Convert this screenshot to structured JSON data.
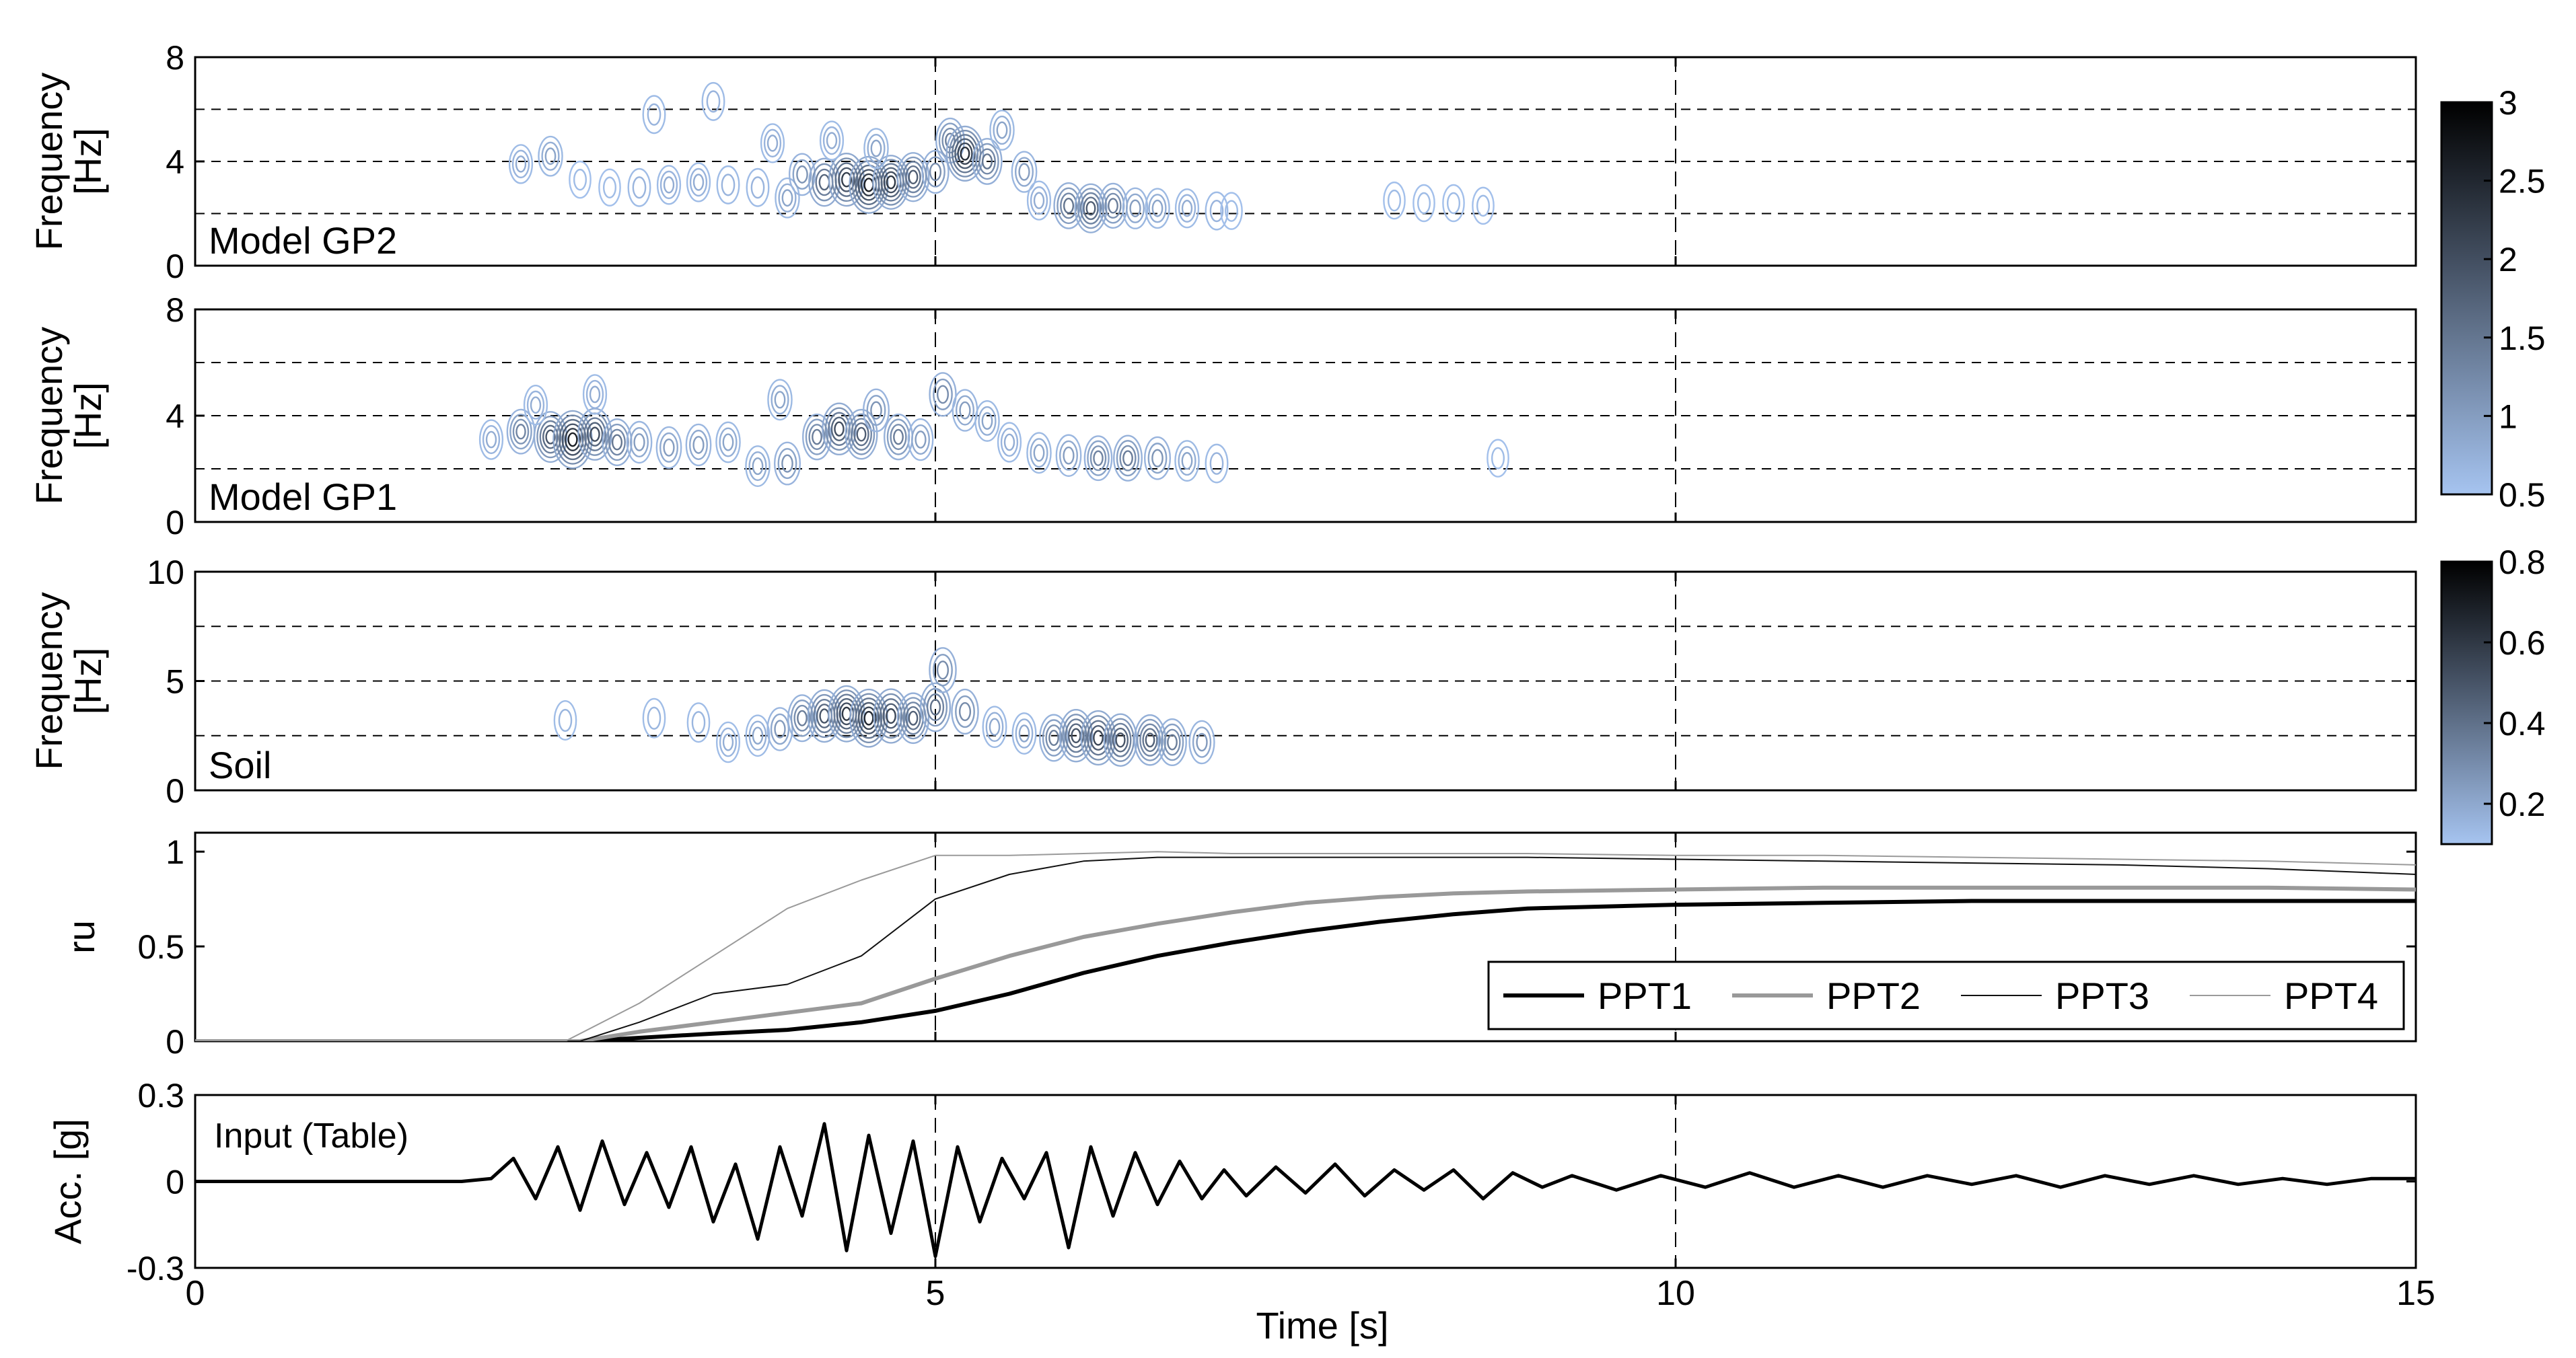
{
  "chart_data": {
    "type": "line",
    "xlabel": "Time [s]",
    "xlim": [
      0,
      15
    ],
    "xticks": [
      "0",
      "5",
      "10",
      "15"
    ],
    "panels": [
      {
        "id": "gp2",
        "type": "heatmap",
        "ylabel_line1": "Frequency",
        "ylabel_line2": "[Hz]",
        "label": "Model GP2",
        "ylim": [
          0,
          8
        ],
        "yticks": [
          "0",
          "4",
          "8"
        ],
        "dashed_y": [
          2,
          4,
          6
        ],
        "colorbar": "cb1",
        "blobs": [
          {
            "t": 2.2,
            "f": 3.9,
            "a": 0.8
          },
          {
            "t": 2.4,
            "f": 4.2,
            "a": 0.9
          },
          {
            "t": 2.6,
            "f": 3.3,
            "a": 0.6
          },
          {
            "t": 2.8,
            "f": 3.0,
            "a": 0.6
          },
          {
            "t": 3.0,
            "f": 3.0,
            "a": 0.7
          },
          {
            "t": 3.2,
            "f": 3.1,
            "a": 0.8
          },
          {
            "t": 3.1,
            "f": 5.8,
            "a": 0.7
          },
          {
            "t": 3.4,
            "f": 3.2,
            "a": 0.8
          },
          {
            "t": 3.5,
            "f": 6.3,
            "a": 0.7
          },
          {
            "t": 3.6,
            "f": 3.1,
            "a": 0.7
          },
          {
            "t": 3.8,
            "f": 3.0,
            "a": 0.7
          },
          {
            "t": 3.9,
            "f": 4.7,
            "a": 0.8
          },
          {
            "t": 4.0,
            "f": 2.6,
            "a": 0.9
          },
          {
            "t": 4.1,
            "f": 3.5,
            "a": 1.1
          },
          {
            "t": 4.25,
            "f": 3.2,
            "a": 1.7
          },
          {
            "t": 4.4,
            "f": 3.3,
            "a": 2.2
          },
          {
            "t": 4.55,
            "f": 3.1,
            "a": 2.6
          },
          {
            "t": 4.7,
            "f": 3.2,
            "a": 2.3
          },
          {
            "t": 4.85,
            "f": 3.4,
            "a": 1.8
          },
          {
            "t": 4.3,
            "f": 4.8,
            "a": 0.8
          },
          {
            "t": 4.6,
            "f": 4.5,
            "a": 0.9
          },
          {
            "t": 5.0,
            "f": 3.6,
            "a": 1.2
          },
          {
            "t": 5.1,
            "f": 4.8,
            "a": 1.4
          },
          {
            "t": 5.2,
            "f": 4.3,
            "a": 2.4
          },
          {
            "t": 5.35,
            "f": 4.0,
            "a": 1.5
          },
          {
            "t": 5.45,
            "f": 5.2,
            "a": 0.9
          },
          {
            "t": 5.6,
            "f": 3.6,
            "a": 1.0
          },
          {
            "t": 5.7,
            "f": 2.5,
            "a": 0.8
          },
          {
            "t": 5.9,
            "f": 2.3,
            "a": 1.5
          },
          {
            "t": 6.05,
            "f": 2.2,
            "a": 1.8
          },
          {
            "t": 6.2,
            "f": 2.3,
            "a": 1.4
          },
          {
            "t": 6.35,
            "f": 2.2,
            "a": 1.0
          },
          {
            "t": 6.5,
            "f": 2.2,
            "a": 0.9
          },
          {
            "t": 6.7,
            "f": 2.2,
            "a": 0.8
          },
          {
            "t": 6.9,
            "f": 2.1,
            "a": 0.7
          },
          {
            "t": 7.0,
            "f": 2.1,
            "a": 0.6
          },
          {
            "t": 8.1,
            "f": 2.5,
            "a": 0.6
          },
          {
            "t": 8.3,
            "f": 2.4,
            "a": 0.6
          },
          {
            "t": 8.5,
            "f": 2.4,
            "a": 0.6
          },
          {
            "t": 8.7,
            "f": 2.3,
            "a": 0.6
          }
        ]
      },
      {
        "id": "gp1",
        "type": "heatmap",
        "ylabel_line1": "Frequency",
        "ylabel_line2": "[Hz]",
        "label": "Model GP1",
        "ylim": [
          0,
          8
        ],
        "yticks": [
          "0",
          "4",
          "8"
        ],
        "dashed_y": [
          2,
          4,
          6
        ],
        "colorbar": "cb1",
        "blobs": [
          {
            "t": 2.0,
            "f": 3.1,
            "a": 0.8
          },
          {
            "t": 2.2,
            "f": 3.4,
            "a": 1.3
          },
          {
            "t": 2.4,
            "f": 3.2,
            "a": 1.9
          },
          {
            "t": 2.55,
            "f": 3.1,
            "a": 2.6
          },
          {
            "t": 2.7,
            "f": 3.3,
            "a": 2.0
          },
          {
            "t": 2.85,
            "f": 3.0,
            "a": 1.5
          },
          {
            "t": 2.3,
            "f": 4.4,
            "a": 0.8
          },
          {
            "t": 2.7,
            "f": 4.8,
            "a": 0.8
          },
          {
            "t": 3.0,
            "f": 3.0,
            "a": 1.0
          },
          {
            "t": 3.2,
            "f": 2.8,
            "a": 1.0
          },
          {
            "t": 3.4,
            "f": 2.9,
            "a": 1.0
          },
          {
            "t": 3.6,
            "f": 3.0,
            "a": 0.9
          },
          {
            "t": 3.8,
            "f": 2.1,
            "a": 0.9
          },
          {
            "t": 4.0,
            "f": 2.2,
            "a": 1.1
          },
          {
            "t": 3.95,
            "f": 4.6,
            "a": 0.9
          },
          {
            "t": 4.2,
            "f": 3.2,
            "a": 1.4
          },
          {
            "t": 4.35,
            "f": 3.5,
            "a": 2.0
          },
          {
            "t": 4.5,
            "f": 3.3,
            "a": 1.8
          },
          {
            "t": 4.6,
            "f": 4.2,
            "a": 1.1
          },
          {
            "t": 4.75,
            "f": 3.2,
            "a": 1.4
          },
          {
            "t": 4.9,
            "f": 3.1,
            "a": 1.0
          },
          {
            "t": 5.05,
            "f": 4.8,
            "a": 1.2
          },
          {
            "t": 5.2,
            "f": 4.2,
            "a": 1.0
          },
          {
            "t": 5.35,
            "f": 3.8,
            "a": 0.9
          },
          {
            "t": 5.5,
            "f": 3.0,
            "a": 0.8
          },
          {
            "t": 5.7,
            "f": 2.6,
            "a": 0.9
          },
          {
            "t": 5.9,
            "f": 2.5,
            "a": 1.0
          },
          {
            "t": 6.1,
            "f": 2.4,
            "a": 1.3
          },
          {
            "t": 6.3,
            "f": 2.4,
            "a": 1.4
          },
          {
            "t": 6.5,
            "f": 2.4,
            "a": 1.1
          },
          {
            "t": 6.7,
            "f": 2.3,
            "a": 0.9
          },
          {
            "t": 6.9,
            "f": 2.2,
            "a": 0.7
          },
          {
            "t": 8.8,
            "f": 2.4,
            "a": 0.6
          }
        ]
      },
      {
        "id": "soil",
        "type": "heatmap",
        "ylabel_line1": "Frequency",
        "ylabel_line2": "[Hz]",
        "label": "Soil",
        "ylim": [
          0,
          10
        ],
        "yticks": [
          "0",
          "5",
          "10"
        ],
        "dashed_y": [
          2.5,
          5,
          7.5
        ],
        "colorbar": "cb2",
        "blobs": [
          {
            "t": 2.5,
            "f": 3.2,
            "a": 0.15
          },
          {
            "t": 3.1,
            "f": 3.3,
            "a": 0.15
          },
          {
            "t": 3.4,
            "f": 3.1,
            "a": 0.15
          },
          {
            "t": 3.6,
            "f": 2.2,
            "a": 0.18
          },
          {
            "t": 3.8,
            "f": 2.5,
            "a": 0.2
          },
          {
            "t": 3.95,
            "f": 2.8,
            "a": 0.25
          },
          {
            "t": 4.1,
            "f": 3.3,
            "a": 0.35
          },
          {
            "t": 4.25,
            "f": 3.4,
            "a": 0.5
          },
          {
            "t": 4.4,
            "f": 3.5,
            "a": 0.6
          },
          {
            "t": 4.55,
            "f": 3.3,
            "a": 0.65
          },
          {
            "t": 4.7,
            "f": 3.4,
            "a": 0.55
          },
          {
            "t": 4.85,
            "f": 3.3,
            "a": 0.45
          },
          {
            "t": 5.0,
            "f": 3.8,
            "a": 0.4
          },
          {
            "t": 5.05,
            "f": 5.5,
            "a": 0.3
          },
          {
            "t": 5.2,
            "f": 3.6,
            "a": 0.3
          },
          {
            "t": 5.4,
            "f": 2.9,
            "a": 0.2
          },
          {
            "t": 5.6,
            "f": 2.6,
            "a": 0.2
          },
          {
            "t": 5.8,
            "f": 2.4,
            "a": 0.35
          },
          {
            "t": 5.95,
            "f": 2.5,
            "a": 0.5
          },
          {
            "t": 6.1,
            "f": 2.4,
            "a": 0.55
          },
          {
            "t": 6.25,
            "f": 2.3,
            "a": 0.5
          },
          {
            "t": 6.45,
            "f": 2.3,
            "a": 0.45
          },
          {
            "t": 6.6,
            "f": 2.2,
            "a": 0.35
          },
          {
            "t": 6.8,
            "f": 2.2,
            "a": 0.25
          }
        ]
      },
      {
        "id": "ru",
        "type": "line",
        "ylabel_line1": "ru",
        "ylim": [
          0,
          1.1
        ],
        "yticks": [
          "0",
          "0.5",
          "1"
        ],
        "ytick_values": [
          0,
          0.5,
          1
        ],
        "legend": {
          "position": "bottom-right",
          "entries": [
            "PPT1",
            "PPT2",
            "PPT3",
            "PPT4"
          ]
        },
        "series": [
          {
            "name": "PPT1",
            "color": "#000000",
            "width": 6,
            "x": [
              0,
              2.6,
              3.5,
              4.0,
              4.5,
              5.0,
              5.5,
              6.0,
              6.5,
              7.0,
              7.5,
              8.0,
              8.5,
              9.0,
              10.0,
              11.0,
              12.0,
              13.0,
              14.0,
              15.0
            ],
            "y": [
              0,
              0,
              0.04,
              0.06,
              0.1,
              0.16,
              0.25,
              0.36,
              0.45,
              0.52,
              0.58,
              0.63,
              0.67,
              0.7,
              0.72,
              0.73,
              0.74,
              0.74,
              0.74,
              0.74
            ]
          },
          {
            "name": "PPT2",
            "color": "#999999",
            "width": 6,
            "x": [
              0,
              2.6,
              3.0,
              3.5,
              4.0,
              4.5,
              5.0,
              5.5,
              6.0,
              6.5,
              7.0,
              7.5,
              8.0,
              8.5,
              9.0,
              10.0,
              11.0,
              12.0,
              13.0,
              14.0,
              15.0
            ],
            "y": [
              0,
              0,
              0.05,
              0.1,
              0.15,
              0.2,
              0.33,
              0.45,
              0.55,
              0.62,
              0.68,
              0.73,
              0.76,
              0.78,
              0.79,
              0.8,
              0.81,
              0.81,
              0.81,
              0.81,
              0.8
            ]
          },
          {
            "name": "PPT3",
            "color": "#111111",
            "width": 2,
            "x": [
              0,
              2.6,
              3.0,
              3.5,
              4.0,
              4.5,
              5.0,
              5.5,
              6.0,
              6.5,
              7.0,
              8.0,
              9.0,
              10.0,
              11.0,
              12.0,
              13.0,
              14.0,
              15.0
            ],
            "y": [
              0,
              0,
              0.1,
              0.25,
              0.3,
              0.45,
              0.75,
              0.88,
              0.95,
              0.97,
              0.97,
              0.97,
              0.97,
              0.96,
              0.95,
              0.94,
              0.93,
              0.91,
              0.88
            ]
          },
          {
            "name": "PPT4",
            "color": "#9a9a9a",
            "width": 2,
            "x": [
              0,
              2.5,
              3.0,
              3.5,
              4.0,
              4.5,
              5.0,
              5.5,
              6.0,
              6.5,
              7.0,
              8.0,
              9.0,
              10.0,
              11.0,
              12.0,
              13.0,
              14.0,
              15.0
            ],
            "y": [
              0,
              0,
              0.2,
              0.45,
              0.7,
              0.85,
              0.98,
              0.98,
              0.99,
              1.0,
              0.99,
              0.99,
              0.99,
              0.98,
              0.98,
              0.97,
              0.96,
              0.95,
              0.93
            ]
          }
        ]
      },
      {
        "id": "acc",
        "type": "line",
        "ylabel_line1": "Acc. [g]",
        "label": "Input (Table)",
        "ylim": [
          -0.3,
          0.3
        ],
        "yticks": [
          "-0.3",
          "0",
          "0.3"
        ],
        "ytick_values": [
          -0.3,
          0,
          0.3
        ],
        "series": [
          {
            "name": "",
            "color": "#000000",
            "width": 5,
            "x": [
              0,
              1.8,
              2.0,
              2.15,
              2.3,
              2.45,
              2.6,
              2.75,
              2.9,
              3.05,
              3.2,
              3.35,
              3.5,
              3.65,
              3.8,
              3.95,
              4.1,
              4.25,
              4.4,
              4.55,
              4.7,
              4.85,
              5.0,
              5.15,
              5.3,
              5.45,
              5.6,
              5.75,
              5.9,
              6.05,
              6.2,
              6.35,
              6.5,
              6.65,
              6.8,
              6.95,
              7.1,
              7.3,
              7.5,
              7.7,
              7.9,
              8.1,
              8.3,
              8.5,
              8.7,
              8.9,
              9.1,
              9.3,
              9.6,
              9.9,
              10.2,
              10.5,
              10.8,
              11.1,
              11.4,
              11.7,
              12.0,
              12.3,
              12.6,
              12.9,
              13.2,
              13.5,
              13.8,
              14.1,
              14.4,
              14.7,
              15.0
            ],
            "y": [
              0,
              0,
              0.01,
              0.08,
              -0.06,
              0.12,
              -0.1,
              0.14,
              -0.08,
              0.1,
              -0.09,
              0.12,
              -0.14,
              0.06,
              -0.2,
              0.12,
              -0.12,
              0.2,
              -0.24,
              0.16,
              -0.18,
              0.14,
              -0.26,
              0.12,
              -0.14,
              0.08,
              -0.06,
              0.1,
              -0.23,
              0.12,
              -0.12,
              0.1,
              -0.08,
              0.07,
              -0.06,
              0.04,
              -0.05,
              0.05,
              -0.04,
              0.06,
              -0.05,
              0.04,
              -0.03,
              0.04,
              -0.06,
              0.03,
              -0.02,
              0.02,
              -0.03,
              0.02,
              -0.02,
              0.03,
              -0.02,
              0.02,
              -0.02,
              0.02,
              -0.01,
              0.02,
              -0.02,
              0.02,
              -0.01,
              0.02,
              -0.01,
              0.01,
              -0.01,
              0.01,
              0.01
            ]
          }
        ]
      }
    ],
    "colorbars": [
      {
        "id": "cb1",
        "min": 0.5,
        "max": 3,
        "ticks": [
          "0.5",
          "1",
          "1.5",
          "2",
          "2.5",
          "3"
        ],
        "tick_values": [
          0.5,
          1,
          1.5,
          2,
          2.5,
          3
        ]
      },
      {
        "id": "cb2",
        "min": 0.1,
        "max": 0.8,
        "ticks": [
          "0.2",
          "0.4",
          "0.6",
          "0.8"
        ],
        "tick_values": [
          0.2,
          0.4,
          0.6,
          0.8
        ]
      }
    ],
    "colors": {
      "low": "#a6c4f0",
      "high": "#000000",
      "axis": "#000000"
    },
    "grid": "dashed at x=5 and x=10"
  }
}
